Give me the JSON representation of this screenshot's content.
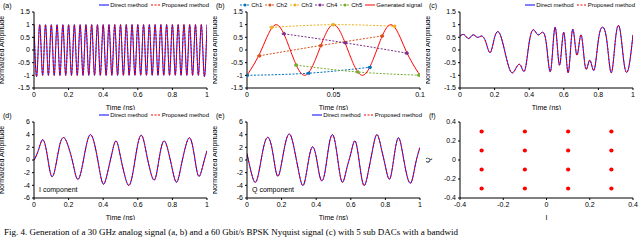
{
  "caption": "Fig. 4. Generation of a 30 GHz analog signal (a, b) and a 60 Gbit/s BPSK Nyquist signal (c) with 5 sub DACs with a bandwid",
  "chart_data": [
    {
      "type": "line",
      "label": "(a)",
      "x_label": "Time (ns)",
      "y_label": "Normalized Amplitude",
      "legend": "top",
      "xlim": [
        0,
        1
      ],
      "xticks": [
        0,
        0.2,
        0.4,
        0.6,
        0.8,
        1
      ],
      "ylim": [
        -1.5,
        1.5
      ],
      "yticks": [
        -1.5,
        -1,
        -0.5,
        0,
        0.5,
        1,
        1.5
      ],
      "x": [
        0,
        0.0167,
        0.0333,
        0.05,
        0.0667,
        0.0833,
        0.1,
        0.1167,
        0.1333,
        0.15,
        0.1667,
        0.1833,
        0.2,
        0.2167,
        0.2333,
        0.25,
        0.2667,
        0.2833,
        0.3,
        0.3167,
        0.3333,
        0.35,
        0.3667,
        0.3833,
        0.4,
        0.4167,
        0.4333,
        0.45,
        0.4667,
        0.4833,
        0.5,
        0.5167,
        0.5333,
        0.55,
        0.5667,
        0.5833,
        0.6,
        0.6167,
        0.6333,
        0.65,
        0.6667,
        0.6833,
        0.7,
        0.7167,
        0.7333,
        0.75,
        0.7667,
        0.7833,
        0.8,
        0.8167,
        0.8333,
        0.85,
        0.8667,
        0.8833,
        0.9,
        0.9167,
        0.9333,
        0.95,
        0.9667,
        0.9833,
        1
      ],
      "series": [
        {
          "name": "Direct method",
          "color": "#0000ff",
          "line_style": "solid",
          "values": [
            1,
            -1,
            1,
            -1,
            1,
            -1,
            1,
            -1,
            1,
            -1,
            1,
            -1,
            1,
            -1,
            1,
            -1,
            1,
            -1,
            1,
            -1,
            1,
            -1,
            1,
            -1,
            1,
            -1,
            1,
            -1,
            1,
            -1,
            1,
            -1,
            1,
            -1,
            1,
            -1,
            1,
            -1,
            1,
            -1,
            1,
            -1,
            1,
            -1,
            1,
            -1,
            1,
            -1,
            1,
            -1,
            1,
            -1,
            1,
            -1,
            1,
            -1,
            1,
            -1,
            1,
            -1,
            1
          ]
        },
        {
          "name": "Proposed method",
          "color": "#ff0000",
          "line_style": "dashed",
          "values": [
            1,
            -1,
            1,
            -1,
            1,
            -1,
            1,
            -1,
            1,
            -1,
            1,
            -1,
            1,
            -1,
            1,
            -1,
            1,
            -1,
            1,
            -1,
            1,
            -1,
            1,
            -1,
            1,
            -1,
            1,
            -1,
            1,
            -1,
            1,
            -1,
            1,
            -1,
            1,
            -1,
            1,
            -1,
            1,
            -1,
            1,
            -1,
            1,
            -1,
            1,
            -1,
            1,
            -1,
            1,
            -1,
            1,
            -1,
            1,
            -1,
            1,
            -1,
            1,
            -1,
            1,
            -1,
            1
          ]
        }
      ]
    },
    {
      "type": "line",
      "label": "(b)",
      "x_label": "Time (ns)",
      "y_label": "Normalized Amplitude",
      "legend": "top",
      "xlim": [
        0,
        0.1
      ],
      "xticks": [
        0,
        0.05,
        0.1
      ],
      "ylim": [
        -1.5,
        1.5
      ],
      "yticks": [
        -1.5,
        -1,
        -0.5,
        0,
        0.5,
        1,
        1.5
      ],
      "series": [
        {
          "name": "Ch1",
          "color": "#0072bd",
          "line_style": "dashed",
          "marker": "dot",
          "x": [
            0,
            0.0355,
            0.071
          ],
          "values": [
            -1,
            -0.917,
            -0.682
          ]
        },
        {
          "name": "Ch2",
          "color": "#d95319",
          "line_style": "dashed",
          "marker": "dot",
          "x": [
            0.0071,
            0.0426,
            0.0781
          ],
          "values": [
            -0.23,
            0.177,
            0.555
          ]
        },
        {
          "name": "Ch3",
          "color": "#edb120",
          "line_style": "dashed",
          "marker": "dot",
          "x": [
            0.0142,
            0.0497,
            0.0852
          ],
          "values": [
            0.894,
            0.999,
            0.937
          ]
        },
        {
          "name": "Ch4",
          "color": "#7e2f8e",
          "line_style": "dashed",
          "marker": "dot",
          "x": [
            0.0213,
            0.0568,
            0.0923
          ],
          "values": [
            0.641,
            0.282,
            -0.124
          ]
        },
        {
          "name": "Ch5",
          "color": "#77ac30",
          "line_style": "dashed",
          "marker": "dot",
          "x": [
            0.0284,
            0.0639,
            0.0994
          ],
          "values": [
            -0.598,
            -0.868,
            -0.994
          ]
        },
        {
          "name": "Generated signal",
          "color": "#ff0000",
          "line_style": "solid",
          "x": [
            0,
            0.0083,
            0.0167,
            0.025,
            0.0333,
            0.0417,
            0.05,
            0.0583,
            0.0667,
            0.075,
            0.0833,
            0.0917,
            0.1
          ],
          "values": [
            -1,
            0,
            1,
            0,
            -1,
            0,
            1,
            0,
            -1,
            0,
            1,
            0,
            -1
          ]
        }
      ]
    },
    {
      "type": "line",
      "label": "(c)",
      "x_label": "Time (ns)",
      "y_label": "Normalized Amplitude",
      "legend": "top",
      "xlim": [
        0,
        1
      ],
      "xticks": [
        0,
        0.2,
        0.4,
        0.6,
        0.8,
        1
      ],
      "ylim": [
        -1.5,
        1.5
      ],
      "yticks": [
        -1.5,
        -1,
        -0.5,
        0,
        0.5,
        1,
        1.5
      ],
      "x": [
        0,
        0.025,
        0.05,
        0.075,
        0.1,
        0.125,
        0.15,
        0.175,
        0.2,
        0.225,
        0.25,
        0.275,
        0.3,
        0.325,
        0.35,
        0.375,
        0.4,
        0.425,
        0.45,
        0.475,
        0.5,
        0.525,
        0.55,
        0.575,
        0.6,
        0.625,
        0.65,
        0.675,
        0.7,
        0.725,
        0.75,
        0.775,
        0.8,
        0.825,
        0.85,
        0.875,
        0.9,
        0.925,
        0.95,
        0.975,
        1
      ],
      "series": [
        {
          "name": "Direct method",
          "color": "#0000ff",
          "line_style": "solid",
          "values": [
            0.55,
            0.6,
            0.45,
            0.6,
            0.5,
            0.55,
            0.3,
            -0.1,
            0.5,
            0.7,
            0.2,
            -0.5,
            -0.9,
            -0.7,
            -0.6,
            -0.8,
            0.3,
            0.8,
            0.6,
            0.7,
            0.2,
            -0.8,
            0.9,
            -0.6,
            0.7,
            -0.9,
            0.8,
            -0.2,
            0.6,
            -0.7,
            -0.4,
            -0.8,
            0.4,
            0.9,
            0.3,
            -0.9,
            0.5,
            0.8,
            -0.6,
            -0.7,
            0.6
          ]
        },
        {
          "name": "Proposed method",
          "color": "#ff0000",
          "line_style": "dashed",
          "values": [
            0.55,
            0.6,
            0.45,
            0.6,
            0.5,
            0.55,
            0.3,
            -0.1,
            0.5,
            0.7,
            0.2,
            -0.5,
            -0.9,
            -0.7,
            -0.6,
            -0.8,
            0.3,
            0.8,
            0.6,
            0.7,
            0.2,
            -0.8,
            0.9,
            -0.6,
            0.7,
            -0.9,
            0.8,
            -0.2,
            0.6,
            -0.7,
            -0.4,
            -0.8,
            0.4,
            0.9,
            0.3,
            -0.9,
            0.5,
            0.8,
            -0.6,
            -0.7,
            0.6
          ]
        }
      ]
    },
    {
      "type": "line",
      "label": "(d)",
      "x_label": "Time (ns)",
      "y_label": "Normalized Amplitude",
      "legend": "top",
      "annotation": "I component",
      "xlim": [
        0,
        1
      ],
      "xticks": [
        0,
        0.2,
        0.4,
        0.6,
        0.8,
        1
      ],
      "ylim": [
        -6,
        6
      ],
      "yticks": [
        -6,
        -4,
        -2,
        0,
        2,
        4,
        6
      ],
      "x": [
        0,
        0.025,
        0.05,
        0.075,
        0.1,
        0.125,
        0.15,
        0.175,
        0.2,
        0.225,
        0.25,
        0.275,
        0.3,
        0.325,
        0.35,
        0.375,
        0.4,
        0.425,
        0.45,
        0.475,
        0.5,
        0.525,
        0.55,
        0.575,
        0.6,
        0.625,
        0.65,
        0.675,
        0.7,
        0.725,
        0.75,
        0.775,
        0.8,
        0.825,
        0.85,
        0.875,
        0.9,
        0.925,
        0.95,
        0.975,
        1
      ],
      "series": [
        {
          "name": "Direct method",
          "color": "#0000ff",
          "line_style": "solid",
          "values": [
            0,
            1.5,
            3.2,
            1,
            -2.5,
            -1,
            2.5,
            3.5,
            2,
            -0.5,
            -3,
            -1.5,
            2,
            4,
            2.5,
            -1,
            -3.8,
            -2,
            1,
            3,
            0.5,
            -2.5,
            -4,
            -1.5,
            2.5,
            3.8,
            1,
            -2,
            -3,
            0.5,
            3,
            1.5,
            -1.5,
            -3.5,
            -1,
            2,
            3.5,
            1,
            -2.5,
            -1,
            1.5
          ]
        },
        {
          "name": "Proposed method",
          "color": "#ff0000",
          "line_style": "dashed",
          "values": [
            0,
            1.5,
            3.2,
            1,
            -2.5,
            -1,
            2.5,
            3.5,
            2,
            -0.5,
            -3,
            -1.5,
            2,
            4,
            2.5,
            -1,
            -3.8,
            -2,
            1,
            3,
            0.5,
            -2.5,
            -4,
            -1.5,
            2.5,
            3.8,
            1,
            -2,
            -3,
            0.5,
            3,
            1.5,
            -1.5,
            -3.5,
            -1,
            2,
            3.5,
            1,
            -2.5,
            -1,
            1.5
          ]
        }
      ]
    },
    {
      "type": "line",
      "label": "(e)",
      "x_label": "Time (ns)",
      "y_label": "Normalized Amplitude",
      "legend": "top",
      "annotation": "Q component",
      "xlim": [
        0,
        1
      ],
      "xticks": [
        0,
        0.2,
        0.4,
        0.6,
        0.8,
        1
      ],
      "ylim": [
        -6,
        6
      ],
      "yticks": [
        -6,
        -4,
        -2,
        0,
        2,
        4,
        6
      ],
      "x": [
        0,
        0.025,
        0.05,
        0.075,
        0.1,
        0.125,
        0.15,
        0.175,
        0.2,
        0.225,
        0.25,
        0.275,
        0.3,
        0.325,
        0.35,
        0.375,
        0.4,
        0.425,
        0.45,
        0.475,
        0.5,
        0.525,
        0.55,
        0.575,
        0.6,
        0.625,
        0.65,
        0.675,
        0.7,
        0.725,
        0.75,
        0.775,
        0.8,
        0.825,
        0.85,
        0.875,
        0.9,
        0.925,
        0.95,
        0.975,
        1
      ],
      "series": [
        {
          "name": "Direct method",
          "color": "#0000ff",
          "line_style": "solid",
          "values": [
            1,
            -2,
            -3.5,
            -1,
            2.5,
            3.5,
            1,
            -2.5,
            -0.5,
            3,
            4,
            1.5,
            -2,
            -4,
            -1,
            2,
            0.5,
            -3,
            -2,
            2.5,
            3.8,
            0,
            -3.5,
            -1.5,
            1,
            3,
            -0.5,
            -4,
            -2,
            1.5,
            4,
            2,
            -1,
            -3,
            0.5,
            3.5,
            1,
            -2.5,
            -3.5,
            -0.5,
            2
          ]
        },
        {
          "name": "Proposed method",
          "color": "#ff0000",
          "line_style": "dashed",
          "values": [
            1,
            -2,
            -3.5,
            -1,
            2.5,
            3.5,
            1,
            -2.5,
            -0.5,
            3,
            4,
            1.5,
            -2,
            -4,
            -1,
            2,
            0.5,
            -3,
            -2,
            2.5,
            3.8,
            0,
            -3.5,
            -1.5,
            1,
            3,
            -0.5,
            -4,
            -2,
            1.5,
            4,
            2,
            -1,
            -3,
            0.5,
            3.5,
            1,
            -2.5,
            -3.5,
            -0.5,
            2
          ]
        }
      ]
    },
    {
      "type": "scatter",
      "label": "(f)",
      "x_label": "I",
      "y_label": "Q",
      "color": "#ff0000",
      "marker": "dot",
      "xlim": [
        -0.4,
        0.4
      ],
      "xticks": [
        -0.4,
        -0.2,
        0,
        0.2,
        0.4
      ],
      "ylim": [
        -0.4,
        0.4
      ],
      "yticks": [
        -0.4,
        -0.2,
        0,
        0.2,
        0.4
      ],
      "x": [
        -0.3,
        -0.1,
        0.1,
        0.3,
        -0.3,
        -0.1,
        0.1,
        0.3,
        -0.3,
        -0.1,
        0.1,
        0.3,
        -0.3,
        -0.1,
        0.1,
        0.3
      ],
      "values": [
        0.3,
        0.3,
        0.3,
        0.3,
        0.1,
        0.1,
        0.1,
        0.1,
        -0.1,
        -0.1,
        -0.1,
        -0.1,
        -0.3,
        -0.3,
        -0.3,
        -0.3
      ]
    }
  ]
}
